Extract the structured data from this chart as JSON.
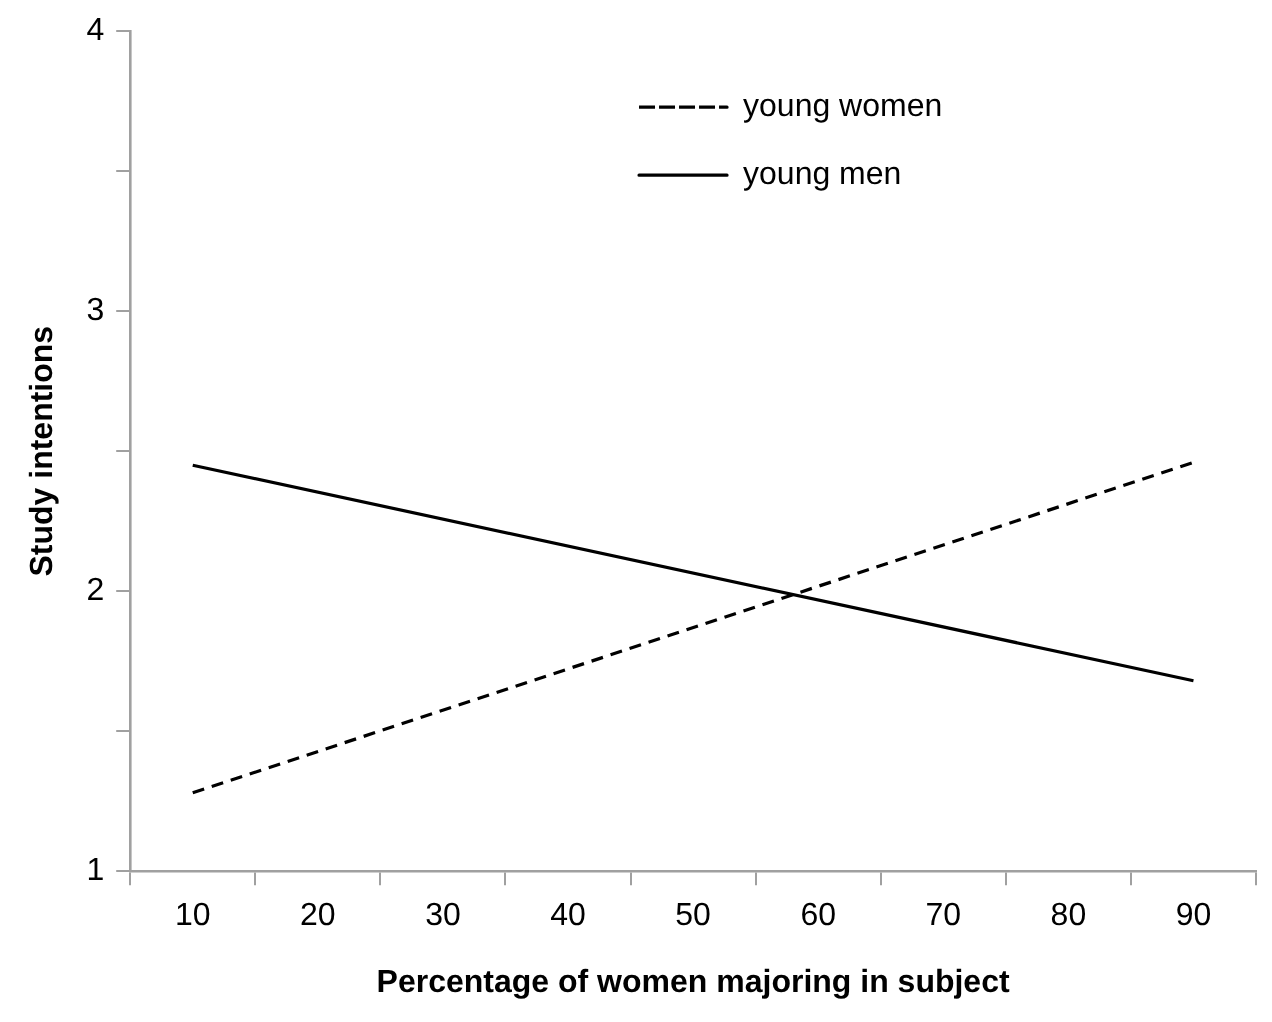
{
  "chart_data": {
    "type": "line",
    "xlabel": "Percentage of women majoring in subject",
    "ylabel": "Study intentions",
    "x": [
      10,
      90
    ],
    "series": [
      {
        "name": "young women",
        "color": "#000000",
        "values": [
          1.28,
          2.46
        ],
        "line_style": "dashed"
      },
      {
        "name": "young men",
        "color": "#000000",
        "values": [
          2.45,
          1.68
        ],
        "line_style": "solid"
      }
    ],
    "xlim": [
      5,
      95
    ],
    "xticks": [
      {
        "value": 5,
        "label": null
      },
      10,
      {
        "value": 15,
        "label": null
      },
      20,
      {
        "value": 25,
        "label": null
      },
      30,
      {
        "value": 35,
        "label": null
      },
      40,
      {
        "value": 45,
        "label": null
      },
      50,
      {
        "value": 55,
        "label": null
      },
      60,
      {
        "value": 65,
        "label": null
      },
      70,
      {
        "value": 75,
        "label": null
      },
      80,
      {
        "value": 85,
        "label": null
      },
      90,
      {
        "value": 95,
        "label": null
      }
    ],
    "ylim": [
      1,
      4
    ],
    "yticks": [
      1,
      {
        "value": 1.5,
        "label": null
      },
      2,
      {
        "value": 2.5,
        "label": null
      },
      3,
      {
        "value": 3.5,
        "label": null
      },
      4
    ],
    "grid": false,
    "legend": "top",
    "marker": "none"
  }
}
